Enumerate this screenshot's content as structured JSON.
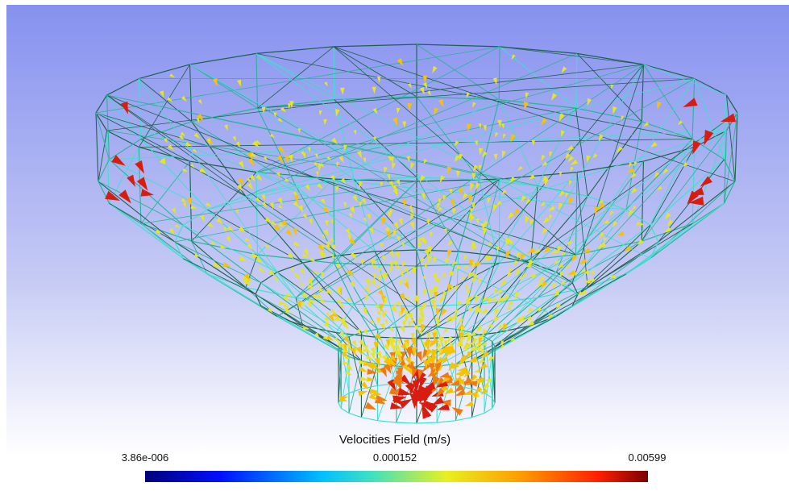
{
  "colorbar": {
    "title": "Velocities Field (m/s)",
    "labels": [
      "3.86e-006",
      "0.000152",
      "0.00599"
    ]
  }
}
